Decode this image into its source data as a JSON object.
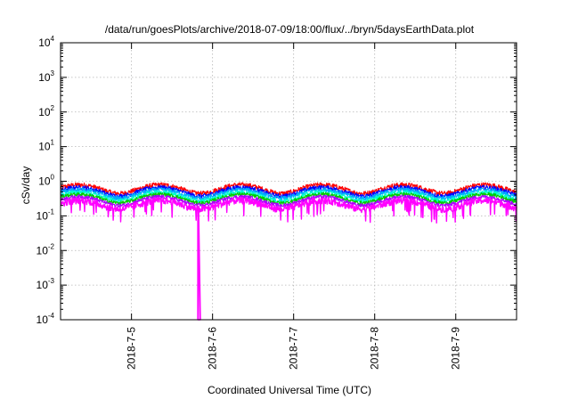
{
  "chart_data": {
    "type": "line",
    "title": "/data/run/goesPlots/archive/2018-07-09/18:00/flux/../bryn/5daysEarthData.plot",
    "xlabel": "Coordinated Universal Time (UTC)",
    "ylabel": "cSv/day",
    "x_scale": "time",
    "xlim": [
      "2018-07-04T03:00",
      "2018-07-09T18:00"
    ],
    "x_ticks": [
      "2018-7-5",
      "2018-7-6",
      "2018-7-7",
      "2018-7-8",
      "2018-7-9"
    ],
    "y_scale": "log",
    "ylim": [
      0.0001,
      10000
    ],
    "y_tick_labels": [
      {
        "base": "10",
        "exp": "-4"
      },
      {
        "base": "10",
        "exp": "-3"
      },
      {
        "base": "10",
        "exp": "-2"
      },
      {
        "base": "10",
        "exp": "-1"
      },
      {
        "base": "10",
        "exp": "0"
      },
      {
        "base": "10",
        "exp": "1"
      },
      {
        "base": "10",
        "exp": "2"
      },
      {
        "base": "10",
        "exp": "3"
      },
      {
        "base": "10",
        "exp": "4"
      }
    ],
    "grid": true,
    "legend": "none",
    "series": [
      {
        "color": "#ff0000",
        "level": 0.62,
        "noise": 0.16
      },
      {
        "color": "#0000ff",
        "level": 0.52,
        "noise": 0.15
      },
      {
        "color": "#00aaff",
        "level": 0.45,
        "noise": 0.14
      },
      {
        "color": "#00ffcc",
        "level": 0.38,
        "noise": 0.13
      },
      {
        "color": "#00cc00",
        "level": 0.33,
        "noise": 0.12
      },
      {
        "color": "#aa00ff",
        "level": 0.28,
        "noise": 0.12
      },
      {
        "color": "#ff00ff",
        "level": 0.22,
        "noise": 0.22
      }
    ],
    "dip": {
      "x": "2018-07-05T19:40",
      "y_min": 0.0001,
      "color": "#ff00ff"
    }
  }
}
